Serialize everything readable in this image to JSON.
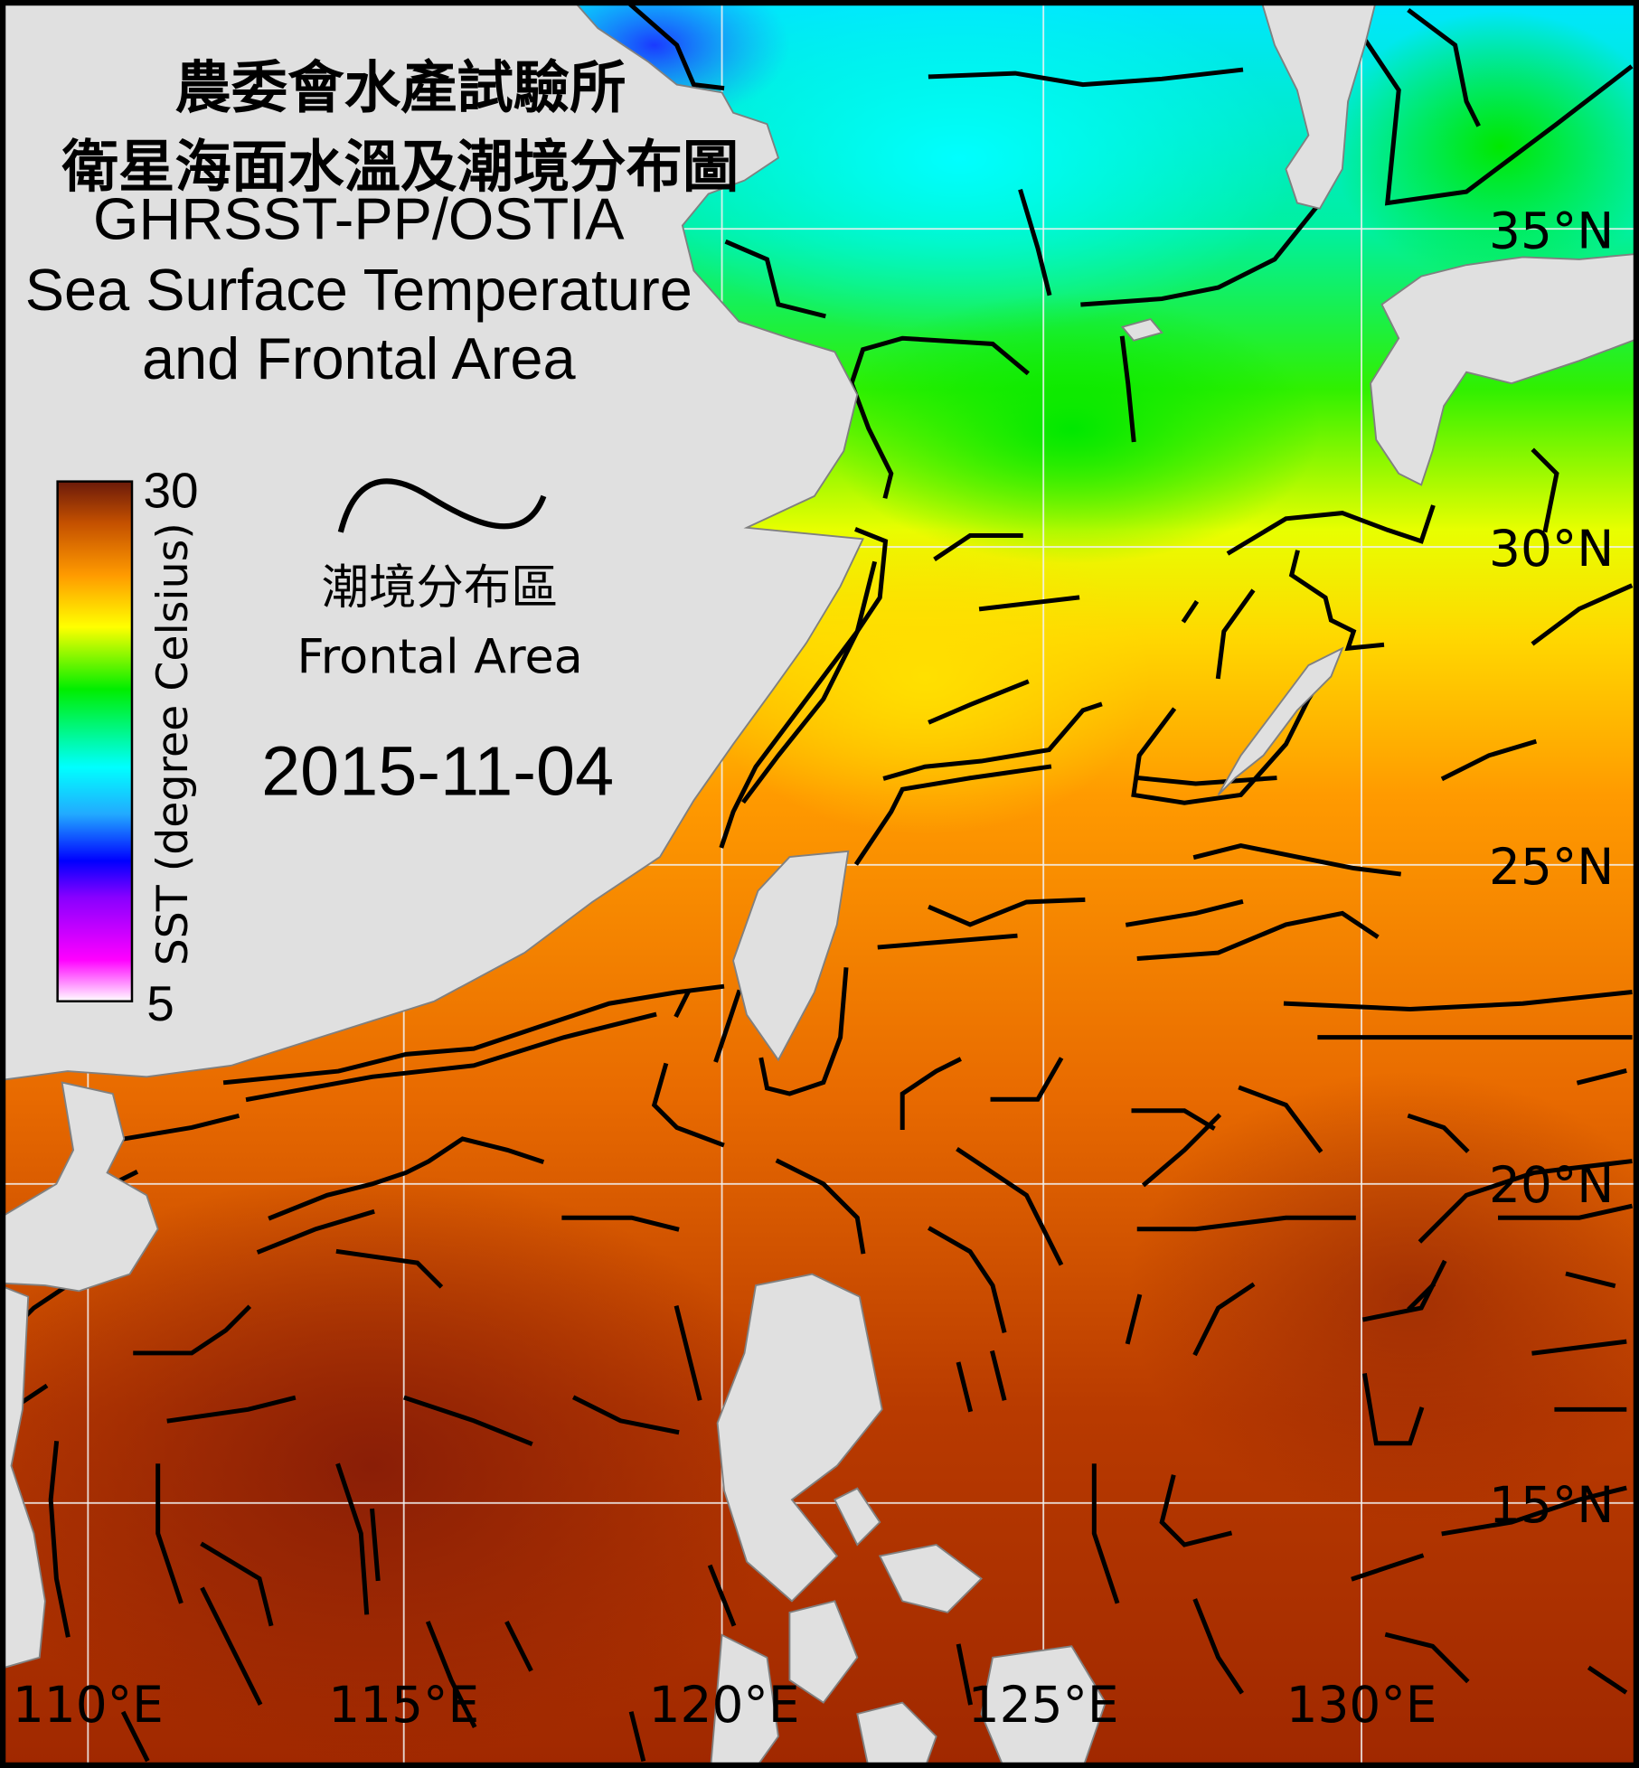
{
  "title": {
    "line1": "農委會水產試驗所",
    "line2": "衛星海面水溫及潮境分布圖",
    "line3": "GHRSST-PP/OSTIA",
    "line4": "Sea Surface Temperature",
    "line5": "and Frontal Area"
  },
  "legend": {
    "frontal_label_zh": "潮境分布區",
    "frontal_label_en": "Frontal Area",
    "date": "2015-11-04"
  },
  "colorbar": {
    "label": "SST (degree Celsius)",
    "max_label": "30",
    "min_label": "5",
    "min": 5,
    "max": 30,
    "colors": [
      "#ffffff",
      "#ff00ff",
      "#8800ff",
      "#0000ff",
      "#00ffff",
      "#00ee00",
      "#ffff00",
      "#ff9a00",
      "#c45000",
      "#6b1a0a"
    ]
  },
  "axes": {
    "longitude_labels": [
      "110°E",
      "115°E",
      "120°E",
      "125°E",
      "130°E"
    ],
    "latitude_labels": [
      "35°N",
      "30°N",
      "25°N",
      "20°N",
      "15°N"
    ]
  },
  "colors": {
    "land": "#e0e0e0",
    "coastline": "#808080",
    "front": "#000000",
    "frame": "#000000"
  }
}
